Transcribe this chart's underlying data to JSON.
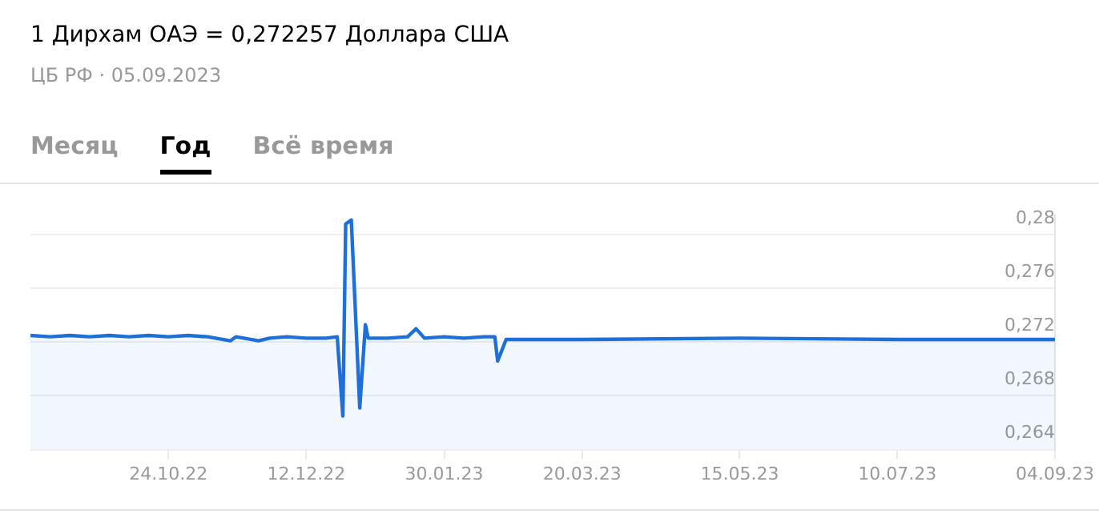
{
  "chart_data": {
    "type": "area",
    "title": "1 Дирхам ОАЭ = 0,272257 Доллара США",
    "subtitle": "ЦБ РФ · 05.09.2023",
    "annotations": [
      "Месяц",
      "Год",
      "Всё время"
    ],
    "x": [
      "2022-09-05",
      "2022-09-12",
      "2022-09-19",
      "2022-09-26",
      "2022-10-03",
      "2022-10-10",
      "2022-10-17",
      "2022-10-24",
      "2022-10-31",
      "2022-11-07",
      "2022-11-15",
      "2022-11-17",
      "2022-11-25",
      "2022-11-29",
      "2022-12-05",
      "2022-12-12",
      "2022-12-19",
      "2022-12-23",
      "2022-12-25",
      "2022-12-26",
      "2022-12-28",
      "2022-12-31",
      "2023-01-02",
      "2023-01-03",
      "2023-01-10",
      "2023-01-17",
      "2023-01-20",
      "2023-01-23",
      "2023-01-30",
      "2023-02-06",
      "2023-02-13",
      "2023-02-17",
      "2023-02-18",
      "2023-02-21",
      "2023-03-20",
      "2023-05-15",
      "2023-07-10",
      "2023-09-04"
    ],
    "series": [
      {
        "color": "#1f6fd8",
        "values": [
          0.2725,
          0.2724,
          0.2725,
          0.2724,
          0.2725,
          0.2724,
          0.2725,
          0.2724,
          0.2725,
          0.2724,
          0.2721,
          0.2724,
          0.2721,
          0.2723,
          0.2724,
          0.2723,
          0.2723,
          0.2724,
          0.2665,
          0.2808,
          0.2811,
          0.2671,
          0.2733,
          0.2723,
          0.2723,
          0.2724,
          0.273,
          0.2723,
          0.2724,
          0.2723,
          0.2724,
          0.2724,
          0.2706,
          0.2722,
          0.2722,
          0.2723,
          0.2722,
          0.2722
        ]
      }
    ],
    "xlim": [
      "2022-09-05",
      "2023-09-04"
    ],
    "xticks": [
      {
        "value": "2022-10-24",
        "label": "24.10.22"
      },
      {
        "value": "2022-12-12",
        "label": "12.12.22"
      },
      {
        "value": "2023-01-30",
        "label": "30.01.23"
      },
      {
        "value": "2023-03-20",
        "label": "20.03.23"
      },
      {
        "value": "2023-05-15",
        "label": "15.05.23"
      },
      {
        "value": "2023-07-10",
        "label": "10.07.23"
      },
      {
        "value": "2023-09-04",
        "label": "04.09.23"
      }
    ],
    "ylim": [
      0.264,
      0.2815
    ],
    "yticks": [
      {
        "value": 0.264,
        "label": "0,264"
      },
      {
        "value": 0.268,
        "label": "0,268"
      },
      {
        "value": 0.272,
        "label": "0,272"
      },
      {
        "value": 0.276,
        "label": "0,276"
      },
      {
        "value": 0.28,
        "label": "0,28"
      }
    ],
    "grid": "y"
  }
}
